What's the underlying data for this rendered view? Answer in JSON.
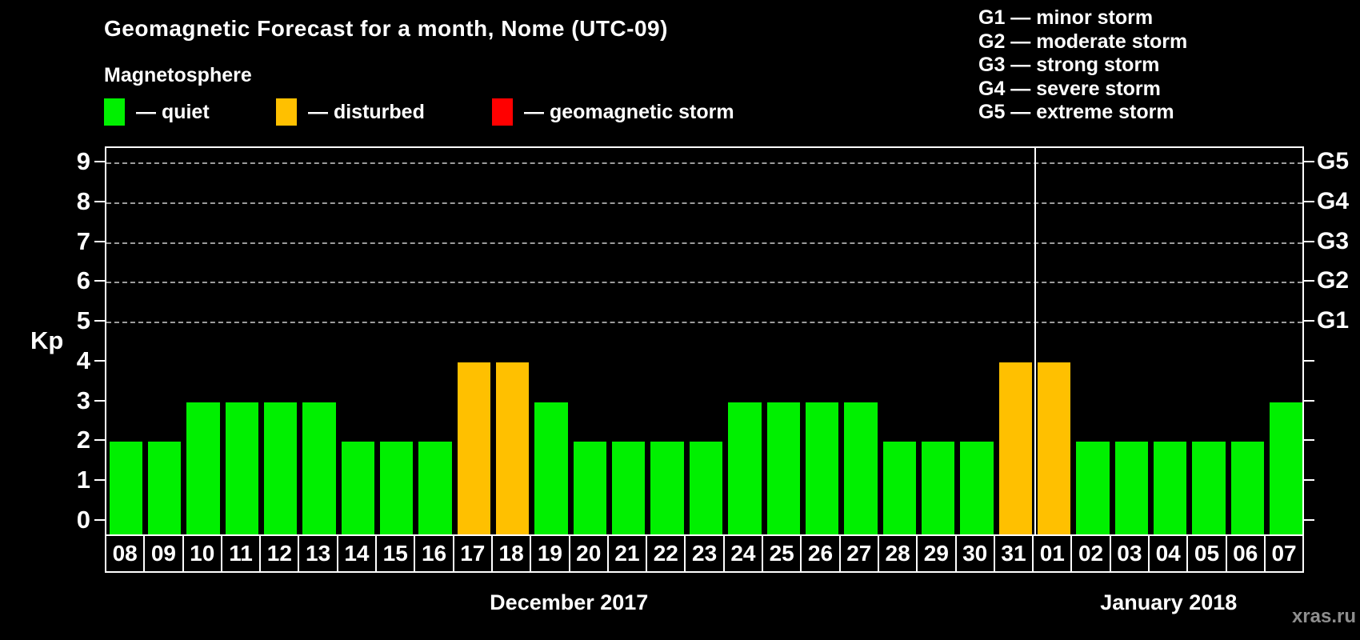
{
  "title": "Geomagnetic Forecast for a month, Nome (UTC-09)",
  "legend": {
    "heading": "Magnetosphere",
    "items": [
      {
        "name": "quiet",
        "label": "— quiet",
        "color": "#00f000"
      },
      {
        "name": "disturbed",
        "label": "— disturbed",
        "color": "#ffc000"
      },
      {
        "name": "geomagnetic-storm",
        "label": "— geomagnetic storm",
        "color": "#ff0000"
      }
    ]
  },
  "g_scale_legend": [
    "G1 — minor storm",
    "G2 — moderate storm",
    "G3 — strong storm",
    "G4 — severe storm",
    "G5 — extreme storm"
  ],
  "chart_data": {
    "type": "bar",
    "title": "Geomagnetic Forecast for a month, Nome (UTC-09)",
    "ylabel": "Kp",
    "ylim": [
      0,
      9
    ],
    "yticks": [
      0,
      1,
      2,
      3,
      4,
      5,
      6,
      7,
      8,
      9
    ],
    "gridlines_at": [
      5,
      6,
      7,
      8,
      9
    ],
    "grid": "dashed horizontal at storm levels only",
    "legend_position": "top",
    "right_axis_labels": [
      {
        "label": "G1",
        "kp": 5
      },
      {
        "label": "G2",
        "kp": 6
      },
      {
        "label": "G3",
        "kp": 7
      },
      {
        "label": "G4",
        "kp": 8
      },
      {
        "label": "G5",
        "kp": 9
      }
    ],
    "categories": [
      "08",
      "09",
      "10",
      "11",
      "12",
      "13",
      "14",
      "15",
      "16",
      "17",
      "18",
      "19",
      "20",
      "21",
      "22",
      "23",
      "24",
      "25",
      "26",
      "27",
      "28",
      "29",
      "30",
      "31",
      "01",
      "02",
      "03",
      "04",
      "05",
      "06",
      "07"
    ],
    "values": [
      2,
      2,
      3,
      3,
      3,
      3,
      2,
      2,
      2,
      4,
      4,
      3,
      2,
      2,
      2,
      2,
      3,
      3,
      3,
      3,
      2,
      2,
      2,
      4,
      4,
      2,
      2,
      2,
      2,
      2,
      3
    ],
    "statuses": [
      "quiet",
      "quiet",
      "quiet",
      "quiet",
      "quiet",
      "quiet",
      "quiet",
      "quiet",
      "quiet",
      "disturbed",
      "disturbed",
      "quiet",
      "quiet",
      "quiet",
      "quiet",
      "quiet",
      "quiet",
      "quiet",
      "quiet",
      "quiet",
      "quiet",
      "quiet",
      "quiet",
      "disturbed",
      "disturbed",
      "quiet",
      "quiet",
      "quiet",
      "quiet",
      "quiet",
      "quiet"
    ],
    "months": [
      {
        "label": "December 2017",
        "start_index": 0,
        "end_index": 23
      },
      {
        "label": "January 2018",
        "start_index": 24,
        "end_index": 30
      }
    ],
    "month_separator_after_index": 23
  },
  "watermark": "xras.ru",
  "colors": {
    "background": "#000000",
    "axis": "#ffffff",
    "text": "#ffffff",
    "gridline": "#9c9c9c",
    "quiet": "#00f000",
    "disturbed": "#ffc000",
    "storm": "#ff0000",
    "watermark": "#8e8e8e"
  }
}
